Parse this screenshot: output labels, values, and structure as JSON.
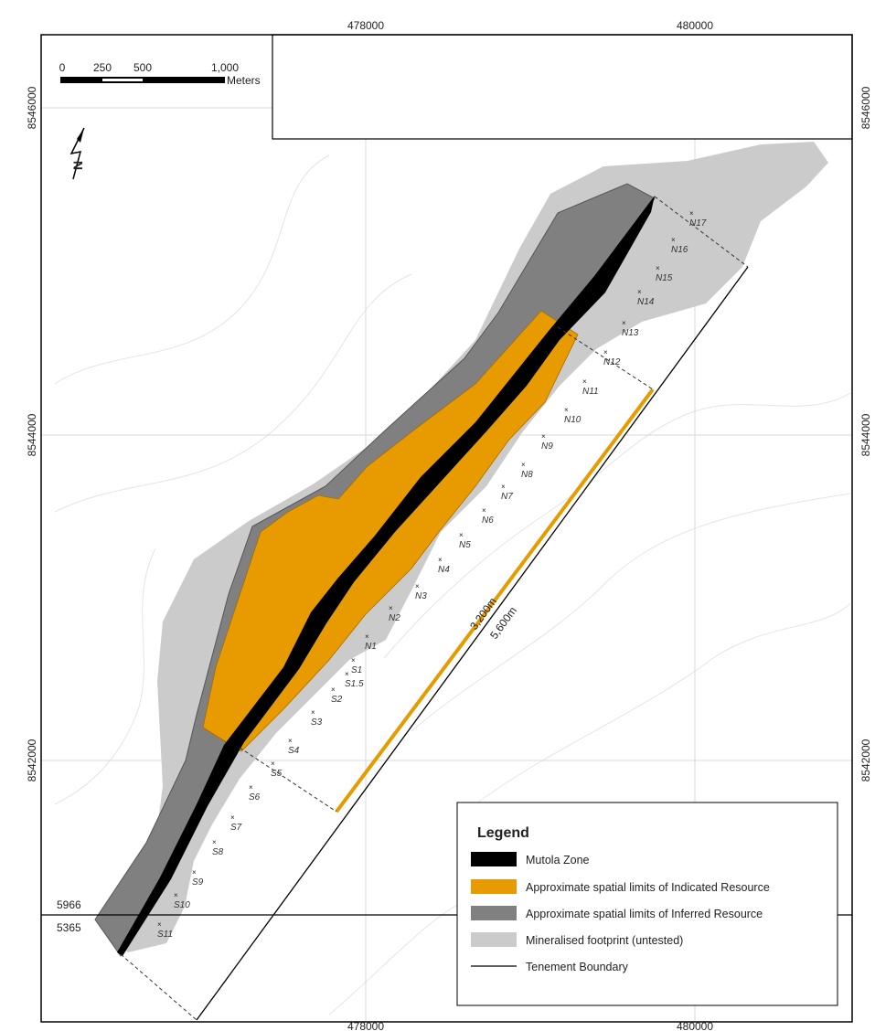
{
  "map": {
    "grid_labels": {
      "top": [
        "478000",
        "480000"
      ],
      "bottom": [
        "478000",
        "480000"
      ],
      "left": [
        "8546000",
        "8544000",
        "8542000"
      ],
      "right": [
        "8546000",
        "8544000",
        "8542000"
      ]
    },
    "scale_bar": {
      "labels": [
        "0",
        "250",
        "500",
        "1,000"
      ],
      "unit": "Meters"
    },
    "north_label": "N",
    "sections": [
      "N17",
      "N16",
      "N15",
      "N14",
      "N13",
      "N12",
      "N11",
      "N10",
      "N9",
      "N8",
      "N7",
      "N6",
      "N5",
      "N4",
      "N3",
      "N2",
      "N1",
      "S1",
      "S1.5",
      "S2",
      "S3",
      "S4",
      "S5",
      "S6",
      "S7",
      "S8",
      "S9",
      "S10",
      "S11"
    ],
    "distances": [
      "3,200m",
      "5,600m"
    ],
    "boundary_labels": [
      "5966",
      "5365"
    ],
    "legend": {
      "title": "Legend",
      "items": [
        "Mutola Zone",
        "Approximate spatial limits of Indicated Resource",
        "Approximate spatial limits of Inferred Resource",
        "Mineralised footprint (untested)",
        "Tenement Boundary"
      ]
    }
  }
}
